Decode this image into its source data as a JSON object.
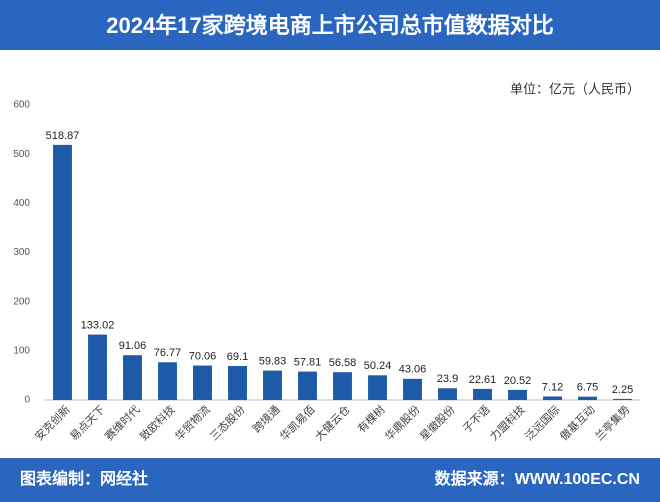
{
  "chart_data": {
    "type": "bar",
    "title": "2024年17家跨境电商上市公司总市值数据对比",
    "unit": "单位：亿元（人民币）",
    "footer_left": "图表编制：网经社",
    "footer_right": "数据来源：WWW.100EC.CN",
    "categories": [
      "安克创新",
      "易点天下",
      "赛维时代",
      "致欧科技",
      "华贸物流",
      "三态股份",
      "跨境通",
      "华凯易佰",
      "大健云仓",
      "有棵树",
      "华鼎股份",
      "星徽股份",
      "子不语",
      "力盟科技",
      "泛远国际",
      "傲基互动",
      "兰亭集势"
    ],
    "values": [
      518.87,
      133.02,
      91.06,
      76.77,
      70.06,
      69.1,
      59.83,
      57.81,
      56.58,
      50.24,
      43.06,
      23.9,
      22.61,
      20.52,
      7.12,
      6.75,
      2.25
    ],
    "color": "#1d5aa8",
    "ylim": [
      0,
      600
    ],
    "yticks": [
      0,
      100,
      200,
      300,
      400,
      500,
      600
    ],
    "grid": false
  }
}
